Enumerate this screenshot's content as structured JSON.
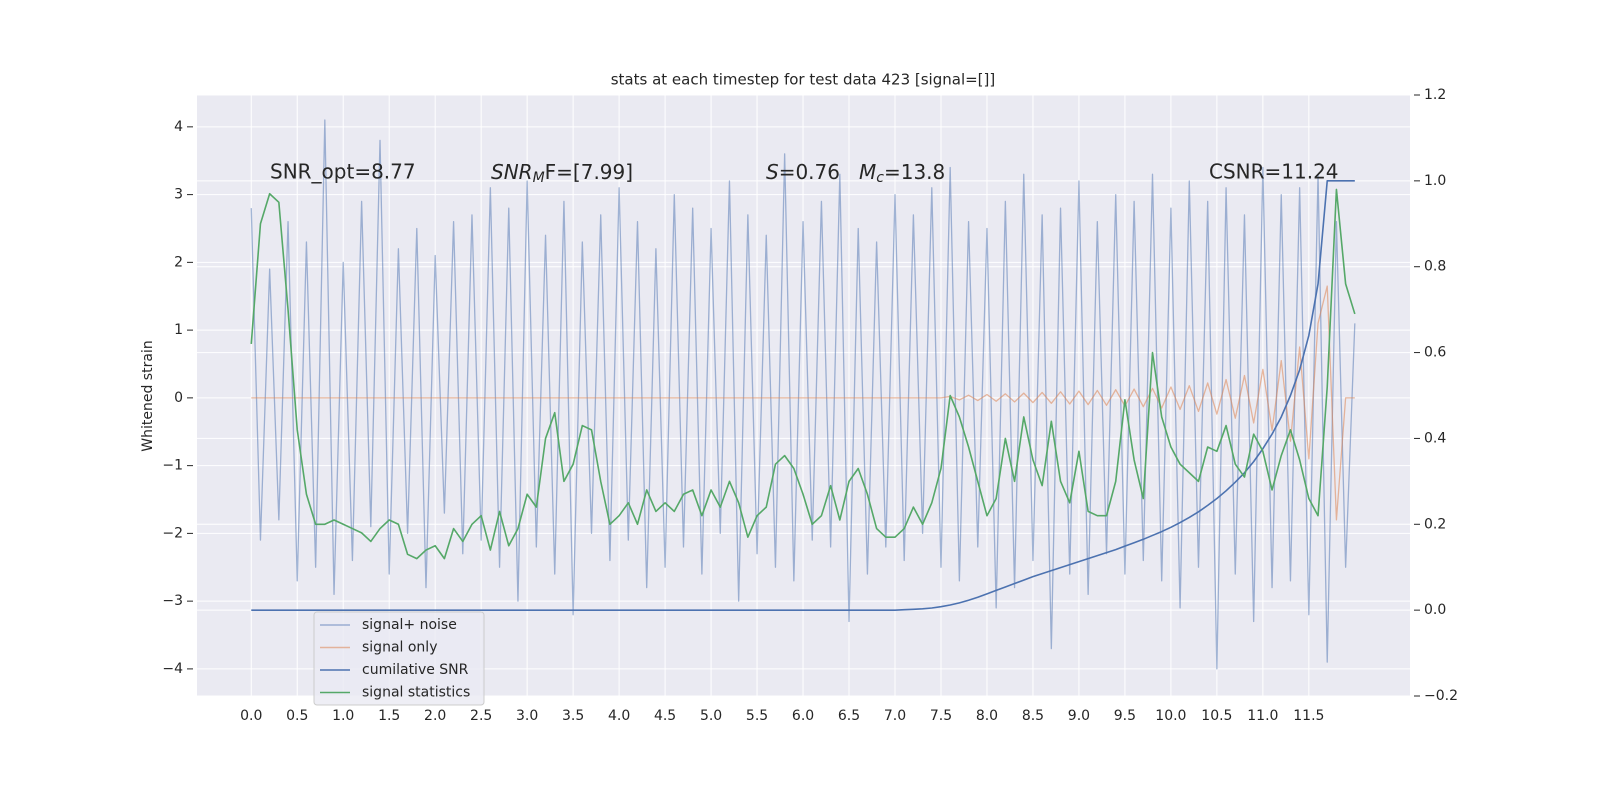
{
  "chart_data": {
    "type": "line",
    "title": "stats at each timestep for test data 423 [signal=[]]",
    "ylabel": "Whitened strain",
    "annotations": {
      "snr_opt": "SNR_opt=8.77",
      "snr_mf": {
        "base": "SNR",
        "sub": "M",
        "rest": "F=[7.99]"
      },
      "s": {
        "symbol": "S",
        "rest": "=0.76"
      },
      "mc": {
        "base": "M",
        "sub": "c",
        "rest": "=13.8"
      },
      "csnr": "CSNR=11.24"
    },
    "xlim": [
      -0.59,
      12.6
    ],
    "ylim": [
      -4.4,
      4.47
    ],
    "y2lim": [
      -0.2,
      1.2
    ],
    "grid": true,
    "legend": "lower left",
    "xticks": [
      {
        "value": 0,
        "label": "0.0"
      },
      0.5,
      {
        "value": 1,
        "label": "1.0"
      },
      1.5,
      {
        "value": 2,
        "label": "2.0"
      },
      2.5,
      {
        "value": 3,
        "label": "3.0"
      },
      3.5,
      {
        "value": 4,
        "label": "4.0"
      },
      4.5,
      {
        "value": 5,
        "label": "5.0"
      },
      5.5,
      {
        "value": 6,
        "label": "6.0"
      },
      6.5,
      {
        "value": 7,
        "label": "7.0"
      },
      7.5,
      {
        "value": 8,
        "label": "8.0"
      },
      8.5,
      {
        "value": 9,
        "label": "9.0"
      },
      9.5,
      {
        "value": 10,
        "label": "10.0"
      },
      10.5,
      {
        "value": 11,
        "label": "11.0"
      },
      11.5
    ],
    "yticks": [
      {
        "value": -4,
        "label": "−4"
      },
      {
        "value": -3,
        "label": "−3"
      },
      {
        "value": -2,
        "label": "−2"
      },
      {
        "value": -1,
        "label": "−1"
      },
      0,
      1,
      2,
      3,
      4
    ],
    "y2ticks": [
      {
        "value": -0.2,
        "label": "−0.2"
      },
      {
        "value": 0,
        "label": "0.0"
      },
      0.2,
      0.4,
      0.6,
      0.8,
      {
        "value": 1,
        "label": "1.0"
      },
      1.2
    ],
    "x": [
      0,
      0.1,
      0.2,
      0.3,
      0.4,
      0.5,
      0.6,
      0.7,
      0.8,
      0.9,
      1,
      1.1,
      1.2,
      1.3,
      1.4,
      1.5,
      1.6,
      1.7,
      1.8,
      1.9,
      2,
      2.1,
      2.2,
      2.3,
      2.4,
      2.5,
      2.6,
      2.7,
      2.8,
      2.9,
      3,
      3.1,
      3.2,
      3.3,
      3.4,
      3.5,
      3.6,
      3.7,
      3.8,
      3.9,
      4,
      4.1,
      4.2,
      4.3,
      4.4,
      4.5,
      4.6,
      4.7,
      4.8,
      4.9,
      5,
      5.1,
      5.2,
      5.3,
      5.4,
      5.5,
      5.6,
      5.7,
      5.8,
      5.9,
      6,
      6.1,
      6.2,
      6.3,
      6.4,
      6.5,
      6.6,
      6.7,
      6.8,
      6.9,
      7,
      7.1,
      7.2,
      7.3,
      7.4,
      7.5,
      7.6,
      7.7,
      7.8,
      7.9,
      8,
      8.1,
      8.2,
      8.3,
      8.4,
      8.5,
      8.6,
      8.7,
      8.8,
      8.9,
      9,
      9.1,
      9.2,
      9.3,
      9.4,
      9.5,
      9.6,
      9.7,
      9.8,
      9.9,
      10,
      10.1,
      10.2,
      10.3,
      10.4,
      10.5,
      10.6,
      10.7,
      10.8,
      10.9,
      11,
      11.1,
      11.2,
      11.3,
      11.4,
      11.5,
      11.6,
      11.7,
      11.8,
      11.9,
      12
    ],
    "series": [
      {
        "name": "signal+ noise",
        "color": "#4c72b0",
        "axis": "y",
        "values": [
          2.8,
          -2.1,
          1.9,
          -1.8,
          2.6,
          -2.7,
          2.3,
          -2.5,
          4.1,
          -2.9,
          2.0,
          -2.4,
          2.9,
          -1.9,
          3.8,
          -2.6,
          2.2,
          -2.0,
          2.5,
          -2.8,
          2.1,
          -1.7,
          2.6,
          -2.3,
          2.7,
          -2.1,
          3.1,
          -2.5,
          2.8,
          -3.0,
          3.2,
          -2.2,
          2.4,
          -2.6,
          2.9,
          -3.2,
          2.3,
          -2.0,
          2.7,
          -2.4,
          3.1,
          -2.1,
          2.6,
          -2.8,
          2.2,
          -2.5,
          3.0,
          -2.2,
          2.8,
          -2.6,
          2.5,
          -2.0,
          3.2,
          -3.0,
          2.7,
          -2.3,
          2.4,
          -2.5,
          3.6,
          -2.7,
          2.6,
          -2.1,
          2.9,
          -2.2,
          3.3,
          -3.3,
          2.5,
          -2.6,
          2.3,
          -2.2,
          3.0,
          -2.4,
          2.7,
          -2.0,
          3.1,
          -2.5,
          3.4,
          -2.7,
          2.6,
          -2.2,
          2.5,
          -3.1,
          2.9,
          -2.8,
          3.3,
          -2.4,
          2.7,
          -3.7,
          2.8,
          -2.6,
          3.2,
          -2.9,
          2.6,
          -2.3,
          3.0,
          -2.6,
          2.9,
          -2.4,
          3.3,
          -2.7,
          2.8,
          -3.1,
          3.2,
          -2.5,
          2.9,
          -4.0,
          3.1,
          -2.6,
          2.7,
          -3.3,
          3.4,
          -2.8,
          3.0,
          -2.7,
          3.1,
          -3.2,
          3.3,
          -3.9,
          2.6,
          -2.5,
          1.1
        ]
      },
      {
        "name": "signal only",
        "color": "#dd8452",
        "axis": "y",
        "values": [
          0,
          0,
          0,
          0,
          0,
          0,
          0,
          0,
          0,
          0,
          0,
          0,
          0,
          0,
          0,
          0,
          0,
          0,
          0,
          0,
          0,
          0,
          0,
          0,
          0,
          0,
          0,
          0,
          0,
          0,
          0,
          0,
          0,
          0,
          0,
          0,
          0,
          0,
          0,
          0,
          0,
          0,
          0,
          0,
          0,
          0,
          0,
          0,
          0,
          0,
          0,
          0,
          0,
          0,
          0,
          0,
          0,
          0,
          0,
          0,
          0,
          0,
          0,
          0,
          0,
          0,
          0,
          0,
          0,
          0,
          0,
          0,
          0,
          0,
          0,
          0,
          0.02,
          -0.03,
          0.04,
          -0.04,
          0.05,
          -0.05,
          0.06,
          -0.06,
          0.07,
          -0.07,
          0.08,
          -0.08,
          0.09,
          -0.09,
          0.1,
          -0.1,
          0.11,
          -0.11,
          0.12,
          -0.12,
          0.13,
          -0.13,
          0.14,
          -0.15,
          0.16,
          -0.17,
          0.18,
          -0.2,
          0.22,
          -0.24,
          0.27,
          -0.3,
          0.33,
          -0.37,
          0.42,
          -0.48,
          0.55,
          -0.64,
          0.75,
          -0.9,
          1.1,
          1.65,
          -1.8,
          0,
          0
        ]
      },
      {
        "name": "cumilative SNR",
        "color": "#4c72b0",
        "axis": "y2",
        "values": [
          0,
          0,
          0,
          0,
          0,
          0,
          0,
          0,
          0,
          0,
          0,
          0,
          0,
          0,
          0,
          0,
          0,
          0,
          0,
          0,
          0,
          0,
          0,
          0,
          0,
          0,
          0,
          0,
          0,
          0,
          0,
          0,
          0,
          0,
          0,
          0,
          0,
          0,
          0,
          0,
          0,
          0,
          0,
          0,
          0,
          0,
          0,
          0,
          0,
          0,
          0,
          0,
          0,
          0,
          0,
          0,
          0,
          0,
          0,
          0,
          0,
          0,
          0,
          0,
          0,
          0,
          0,
          0,
          0,
          0,
          0,
          0.001,
          0.002,
          0.003,
          0.005,
          0.008,
          0.012,
          0.017,
          0.023,
          0.03,
          0.038,
          0.046,
          0.054,
          0.062,
          0.07,
          0.078,
          0.085,
          0.092,
          0.099,
          0.106,
          0.113,
          0.12,
          0.127,
          0.134,
          0.141,
          0.149,
          0.157,
          0.165,
          0.174,
          0.183,
          0.193,
          0.204,
          0.216,
          0.229,
          0.244,
          0.26,
          0.278,
          0.298,
          0.32,
          0.346,
          0.376,
          0.41,
          0.45,
          0.5,
          0.56,
          0.64,
          0.76,
          1.0,
          1.0,
          1.0,
          1.0
        ]
      },
      {
        "name": "signal statistics",
        "color": "#55a868",
        "axis": "y2",
        "values": [
          0.62,
          0.9,
          0.97,
          0.95,
          0.7,
          0.42,
          0.27,
          0.2,
          0.2,
          0.21,
          0.2,
          0.19,
          0.18,
          0.16,
          0.19,
          0.21,
          0.2,
          0.13,
          0.12,
          0.14,
          0.15,
          0.12,
          0.19,
          0.16,
          0.2,
          0.22,
          0.14,
          0.23,
          0.15,
          0.19,
          0.27,
          0.24,
          0.4,
          0.46,
          0.3,
          0.34,
          0.43,
          0.42,
          0.3,
          0.2,
          0.22,
          0.25,
          0.2,
          0.28,
          0.23,
          0.25,
          0.23,
          0.27,
          0.28,
          0.22,
          0.28,
          0.24,
          0.3,
          0.25,
          0.17,
          0.22,
          0.24,
          0.34,
          0.36,
          0.33,
          0.27,
          0.2,
          0.22,
          0.29,
          0.21,
          0.3,
          0.33,
          0.27,
          0.19,
          0.17,
          0.17,
          0.19,
          0.24,
          0.2,
          0.25,
          0.33,
          0.5,
          0.45,
          0.38,
          0.3,
          0.22,
          0.26,
          0.4,
          0.3,
          0.45,
          0.35,
          0.29,
          0.44,
          0.3,
          0.25,
          0.37,
          0.23,
          0.22,
          0.22,
          0.3,
          0.49,
          0.35,
          0.26,
          0.6,
          0.45,
          0.38,
          0.34,
          0.32,
          0.3,
          0.38,
          0.37,
          0.43,
          0.34,
          0.31,
          0.41,
          0.37,
          0.28,
          0.36,
          0.42,
          0.35,
          0.26,
          0.22,
          0.52,
          0.98,
          0.76,
          0.69
        ]
      }
    ]
  }
}
